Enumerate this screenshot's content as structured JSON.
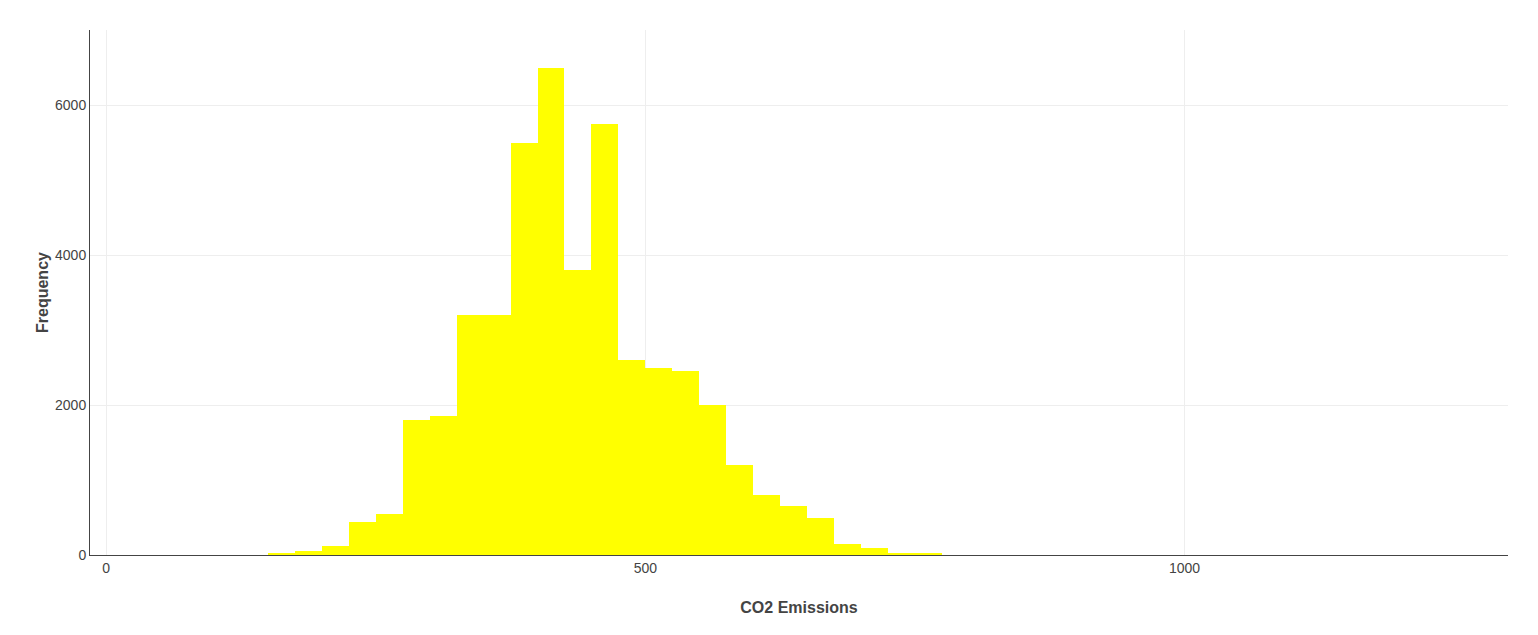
{
  "chart_data": {
    "type": "histogram",
    "xlabel": "CO2 Emissions",
    "ylabel": "Frequency",
    "color": "#FFFF00",
    "bins": [
      150,
      175,
      200,
      225,
      250,
      275,
      300,
      325,
      350,
      375,
      400,
      425,
      450,
      475,
      500,
      525,
      550,
      575,
      600,
      625,
      650,
      675,
      700,
      725,
      750,
      775
    ],
    "values": [
      20,
      50,
      120,
      440,
      550,
      1800,
      1850,
      3200,
      3200,
      5500,
      6500,
      3800,
      5750,
      2600,
      2500,
      2450,
      2000,
      1200,
      800,
      650,
      500,
      150,
      100,
      20,
      30
    ],
    "xlim": [
      -15,
      1300
    ],
    "ylim": [
      0,
      7000
    ],
    "xticks": [
      0,
      500,
      1000
    ],
    "yticks": [
      0,
      2000,
      4000,
      6000
    ],
    "grid": true
  }
}
